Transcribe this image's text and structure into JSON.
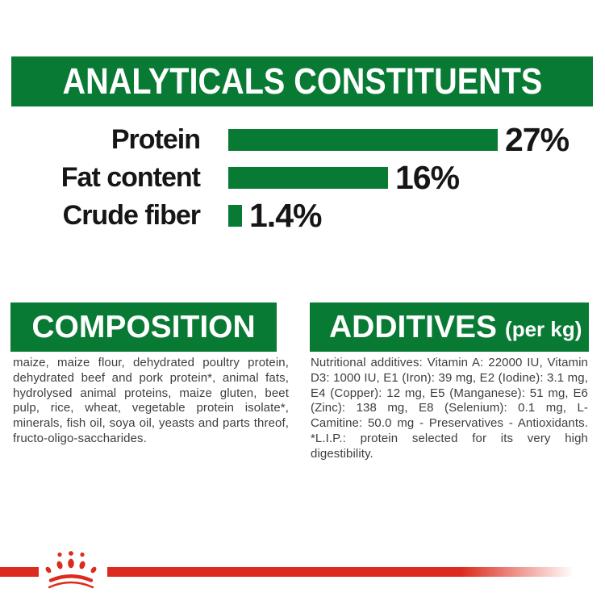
{
  "header": {
    "title": "ANALYTICALS CONSTITUENTS"
  },
  "chart_data": {
    "type": "bar",
    "orientation": "horizontal",
    "title": "ANALYTICALS CONSTITUENTS",
    "categories": [
      "Protein",
      "Fat content",
      "Crude fiber"
    ],
    "values": [
      27,
      16,
      1.4
    ],
    "value_labels": [
      "27%",
      "16%",
      "1.4%"
    ],
    "unit": "%",
    "xlim": [
      0,
      27
    ],
    "grid": false,
    "bar_color": "#087a33"
  },
  "composition": {
    "title": "COMPOSITION",
    "body": "maize, maize flour, dehydrated poultry protein, dehydrated beef and pork protein*, animal fats, hydrolysed animal proteins, maize gluten, beet pulp, rice, wheat, vegetable protein isolate*, minerals, fish oil, soya oil, yeasts and parts threof, fructo-oligo-saccharides."
  },
  "additives": {
    "title": "ADDITIVES",
    "title_suffix": "(per kg)",
    "body": "Nutritional additives: Vitamin A: 22000 IU, Vitamin D3: 1000 IU, E1 (Iron): 39 mg, E2 (Iodine): 3.1 mg, E4 (Copper): 12 mg, E5 (Manganese): 51 mg, E6 (Zinc): 138 mg, E8 (Selenium): 0.1 mg, L- Camitine: 50.0 mg - Preservatives - Antioxidants. *L.I.P.: protein selected for its very high digestibility."
  },
  "footer": {
    "brand_icon": "royal-canin-crown-icon"
  },
  "colors": {
    "green": "#087a33",
    "red": "#dc2b1e",
    "text_dark": "#161616",
    "text_body": "#3e3e3e"
  }
}
